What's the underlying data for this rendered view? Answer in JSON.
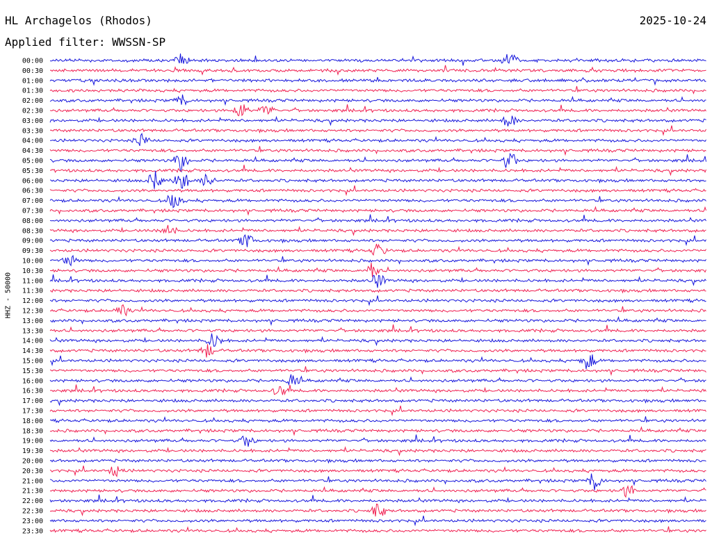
{
  "header": {
    "station": "HL Archagelos (Rhodos)",
    "date": "2025-10-24",
    "filter": "Applied filter: WWSSN-SP"
  },
  "channel_label": "HHZ - 50000",
  "colors": {
    "trace_a": "#1414dc",
    "trace_b": "#f01e50"
  },
  "chart_data": {
    "type": "line",
    "title": "HL Archagelos (Rhodos)",
    "subtitle": "Applied filter: WWSSN-SP",
    "ylabel": "HHZ - 50000",
    "xlabel": "",
    "row_labels": [
      "00:00",
      "00:30",
      "01:00",
      "01:30",
      "02:00",
      "02:30",
      "03:00",
      "03:30",
      "04:00",
      "04:30",
      "05:00",
      "05:30",
      "06:00",
      "06:30",
      "07:00",
      "07:30",
      "08:00",
      "08:30",
      "09:00",
      "09:30",
      "10:00",
      "10:30",
      "11:00",
      "11:30",
      "12:00",
      "12:30",
      "13:00",
      "13:30",
      "14:00",
      "14:30",
      "15:00",
      "15:30",
      "16:00",
      "16:30",
      "17:00",
      "17:30",
      "18:00",
      "18:30",
      "19:00",
      "19:30",
      "20:00",
      "20:30",
      "21:00",
      "21:30",
      "22:00",
      "22:30",
      "23:00",
      "23:30"
    ],
    "row_colors": [
      "trace_a",
      "trace_b"
    ],
    "events": [
      {
        "row": 0,
        "pos": 0.2,
        "amp": 9
      },
      {
        "row": 0,
        "pos": 0.7,
        "amp": 14
      },
      {
        "row": 4,
        "pos": 0.2,
        "amp": 8
      },
      {
        "row": 5,
        "pos": 0.29,
        "amp": 12
      },
      {
        "row": 5,
        "pos": 0.33,
        "amp": 9
      },
      {
        "row": 6,
        "pos": 0.7,
        "amp": 10
      },
      {
        "row": 8,
        "pos": 0.14,
        "amp": 9
      },
      {
        "row": 10,
        "pos": 0.2,
        "amp": 16
      },
      {
        "row": 10,
        "pos": 0.7,
        "amp": 14
      },
      {
        "row": 12,
        "pos": 0.16,
        "amp": 14
      },
      {
        "row": 12,
        "pos": 0.2,
        "amp": 18
      },
      {
        "row": 12,
        "pos": 0.24,
        "amp": 10
      },
      {
        "row": 14,
        "pos": 0.19,
        "amp": 12
      },
      {
        "row": 17,
        "pos": 0.18,
        "amp": 10
      },
      {
        "row": 18,
        "pos": 0.3,
        "amp": 10
      },
      {
        "row": 19,
        "pos": 0.5,
        "amp": 10
      },
      {
        "row": 20,
        "pos": 0.03,
        "amp": 10
      },
      {
        "row": 21,
        "pos": 0.49,
        "amp": 12
      },
      {
        "row": 22,
        "pos": 0.5,
        "amp": 10
      },
      {
        "row": 25,
        "pos": 0.11,
        "amp": 9
      },
      {
        "row": 28,
        "pos": 0.25,
        "amp": 12
      },
      {
        "row": 29,
        "pos": 0.24,
        "amp": 10
      },
      {
        "row": 30,
        "pos": 0.82,
        "amp": 14
      },
      {
        "row": 32,
        "pos": 0.37,
        "amp": 10
      },
      {
        "row": 33,
        "pos": 0.35,
        "amp": 8
      },
      {
        "row": 38,
        "pos": 0.3,
        "amp": 9
      },
      {
        "row": 41,
        "pos": 0.1,
        "amp": 8
      },
      {
        "row": 42,
        "pos": 0.83,
        "amp": 14
      },
      {
        "row": 43,
        "pos": 0.88,
        "amp": 9
      },
      {
        "row": 45,
        "pos": 0.5,
        "amp": 11
      }
    ]
  }
}
